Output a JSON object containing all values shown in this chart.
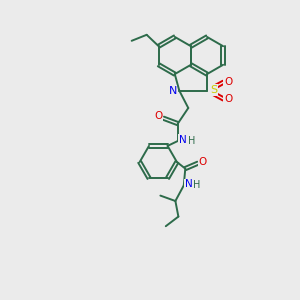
{
  "background_color": "#ebebeb",
  "bond_color": "#2d6b4a",
  "N_color": "#0000ee",
  "O_color": "#dd0000",
  "S_color": "#cccc00",
  "line_width": 1.4,
  "dbo": 0.055,
  "figsize": [
    3.0,
    3.0
  ],
  "dpi": 100,
  "xlim": [
    0,
    10
  ],
  "ylim": [
    0,
    10
  ]
}
